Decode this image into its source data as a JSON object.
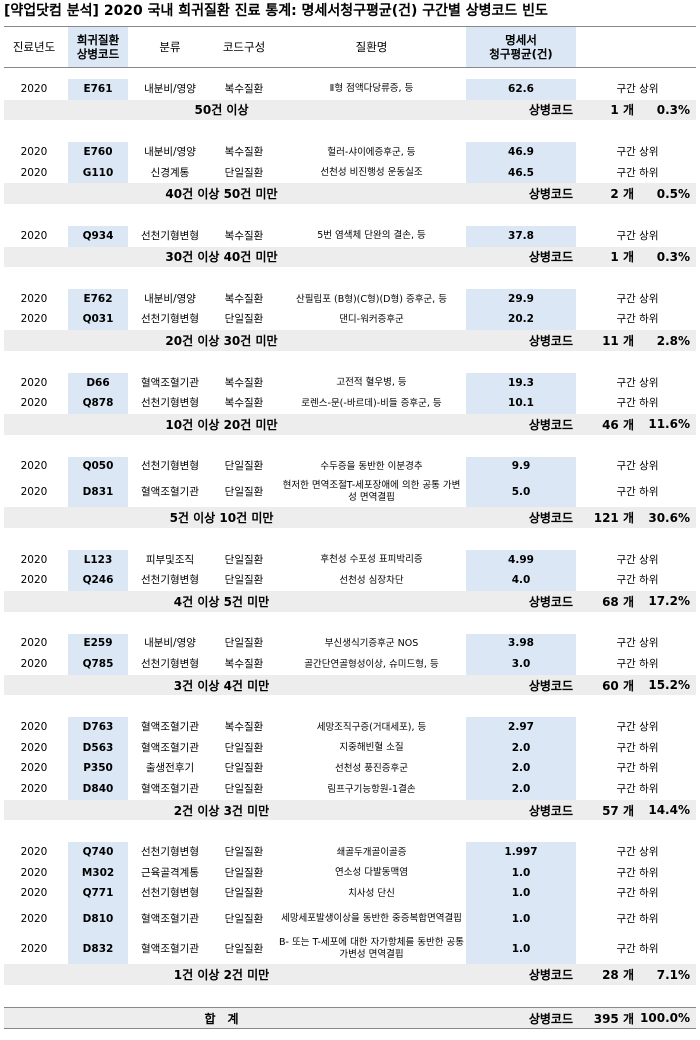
{
  "title": "[약업닷컴 분석] 2020 국내 희귀질환 진료 통계: 명세서청구평균(건) 구간별 상병코드 빈도",
  "headers": {
    "year": "진료년도",
    "code": "희귀질환\n상병코드",
    "category": "분류",
    "composition": "코드구성",
    "disease": "질환명",
    "avg": "명세서\n청구평균(건)",
    "pos": ""
  },
  "sections": [
    {
      "rows": [
        {
          "year": "2020",
          "code": "E761",
          "category": "내분비/영양",
          "composition": "복수질환",
          "disease": "Ⅱ형 점액다당류증, 등",
          "avg": "62.6",
          "pos": "구간 상위"
        }
      ],
      "range": "50건 이상",
      "label": "상병코드",
      "count": "1 개",
      "pct": "0.3%"
    },
    {
      "rows": [
        {
          "year": "2020",
          "code": "E760",
          "category": "내분비/영양",
          "composition": "복수질환",
          "disease": "헐러-샤이에증후군, 등",
          "avg": "46.9",
          "pos": "구간 상위"
        },
        {
          "year": "2020",
          "code": "G110",
          "category": "신경계통",
          "composition": "단일질환",
          "disease": "선천성 비진행성 운동실조",
          "avg": "46.5",
          "pos": "구간 하위"
        }
      ],
      "range": "40건 이상 50건 미만",
      "label": "상병코드",
      "count": "2 개",
      "pct": "0.5%"
    },
    {
      "rows": [
        {
          "year": "2020",
          "code": "Q934",
          "category": "선천기형변형",
          "composition": "복수질환",
          "disease": "5번 염색체 단완의 결손, 등",
          "avg": "37.8",
          "pos": "구간 상위"
        }
      ],
      "range": "30건 이상 40건 미만",
      "label": "상병코드",
      "count": "1 개",
      "pct": "0.3%"
    },
    {
      "rows": [
        {
          "year": "2020",
          "code": "E762",
          "category": "내분비/영양",
          "composition": "복수질환",
          "disease": "산필립포 (B형)(C형)(D형) 증후군, 등",
          "avg": "29.9",
          "pos": "구간 상위"
        },
        {
          "year": "2020",
          "code": "Q031",
          "category": "선천기형변형",
          "composition": "단일질환",
          "disease": "댄디-워커증후군",
          "avg": "20.2",
          "pos": "구간 하위"
        }
      ],
      "range": "20건 이상 30건 미만",
      "label": "상병코드",
      "count": "11 개",
      "pct": "2.8%"
    },
    {
      "rows": [
        {
          "year": "2020",
          "code": "D66",
          "category": "혈액조혈기관",
          "composition": "복수질환",
          "disease": "고전적 혈우병, 등",
          "avg": "19.3",
          "pos": "구간 상위"
        },
        {
          "year": "2020",
          "code": "Q878",
          "category": "선천기형변형",
          "composition": "복수질환",
          "disease": "로렌스-문(-바르데)-비들 증후군, 등",
          "avg": "10.1",
          "pos": "구간 하위"
        }
      ],
      "range": "10건 이상 20건 미만",
      "label": "상병코드",
      "count": "46 개",
      "pct": "11.6%"
    },
    {
      "rows": [
        {
          "year": "2020",
          "code": "Q050",
          "category": "선천기형변형",
          "composition": "단일질환",
          "disease": "수두증을 동반한 이분경추",
          "avg": "9.9",
          "pos": "구간 상위"
        },
        {
          "year": "2020",
          "code": "D831",
          "category": "혈액조혈기관",
          "composition": "단일질환",
          "disease": "현저한 면역조절T-세포장애에 의한 공통 가변성 면역결핍",
          "avg": "5.0",
          "pos": "구간 하위",
          "tall": true
        }
      ],
      "range": "5건 이상 10건 미만",
      "label": "상병코드",
      "count": "121 개",
      "pct": "30.6%"
    },
    {
      "rows": [
        {
          "year": "2020",
          "code": "L123",
          "category": "피부및조직",
          "composition": "단일질환",
          "disease": "후천성 수포성 표피박리증",
          "avg": "4.99",
          "pos": "구간 상위"
        },
        {
          "year": "2020",
          "code": "Q246",
          "category": "선천기형변형",
          "composition": "단일질환",
          "disease": "선천성 심장차단",
          "avg": "4.0",
          "pos": "구간 하위"
        }
      ],
      "range": "4건 이상 5건 미만",
      "label": "상병코드",
      "count": "68 개",
      "pct": "17.2%"
    },
    {
      "rows": [
        {
          "year": "2020",
          "code": "E259",
          "category": "내분비/영양",
          "composition": "단일질환",
          "disease": "부신생식기증후군 NOS",
          "avg": "3.98",
          "pos": "구간 상위"
        },
        {
          "year": "2020",
          "code": "Q785",
          "category": "선천기형변형",
          "composition": "복수질환",
          "disease": "골간단연골형성이상, 슈미드형, 등",
          "avg": "3.0",
          "pos": "구간 하위"
        }
      ],
      "range": "3건 이상 4건 미만",
      "label": "상병코드",
      "count": "60 개",
      "pct": "15.2%"
    },
    {
      "rows": [
        {
          "year": "2020",
          "code": "D763",
          "category": "혈액조혈기관",
          "composition": "복수질환",
          "disease": "세망조직구증(거대세포), 등",
          "avg": "2.97",
          "pos": "구간 상위"
        },
        {
          "year": "2020",
          "code": "D563",
          "category": "혈액조혈기관",
          "composition": "단일질환",
          "disease": "지중해빈혈 소질",
          "avg": "2.0",
          "pos": "구간 하위"
        },
        {
          "year": "2020",
          "code": "P350",
          "category": "출생전후기",
          "composition": "단일질환",
          "disease": "선천성 풍진증후군",
          "avg": "2.0",
          "pos": "구간 하위"
        },
        {
          "year": "2020",
          "code": "D840",
          "category": "혈액조혈기관",
          "composition": "단일질환",
          "disease": "림프구기능항원-1결손",
          "avg": "2.0",
          "pos": "구간 하위"
        }
      ],
      "range": "2건 이상 3건 미만",
      "label": "상병코드",
      "count": "57 개",
      "pct": "14.4%"
    },
    {
      "rows": [
        {
          "year": "2020",
          "code": "Q740",
          "category": "선천기형변형",
          "composition": "단일질환",
          "disease": "쇄골두개골이골증",
          "avg": "1.997",
          "pos": "구간 상위"
        },
        {
          "year": "2020",
          "code": "M302",
          "category": "근육골격계통",
          "composition": "단일질환",
          "disease": "연소성 다발동맥염",
          "avg": "1.0",
          "pos": "구간 하위"
        },
        {
          "year": "2020",
          "code": "Q771",
          "category": "선천기형변형",
          "composition": "단일질환",
          "disease": "치사성 단신",
          "avg": "1.0",
          "pos": "구간 하위"
        },
        {
          "year": "2020",
          "code": "D810",
          "category": "혈액조혈기관",
          "composition": "단일질환",
          "disease": "세망세포발생이상을 동반한 중증복합면역결핍",
          "avg": "1.0",
          "pos": "구간 하위",
          "tall": true
        },
        {
          "year": "2020",
          "code": "D832",
          "category": "혈액조혈기관",
          "composition": "단일질환",
          "disease": "B- 또는 T-세포에 대한 자가항체를 동반한 공통 가변성 면역결핍",
          "avg": "1.0",
          "pos": "구간 하위",
          "tall": true
        }
      ],
      "range": "1건 이상 2건 미만",
      "label": "상병코드",
      "count": "28 개",
      "pct": "7.1%"
    }
  ],
  "total": {
    "label": "합　계",
    "codes": "상병코드",
    "count": "395 개",
    "pct": "100.0%"
  }
}
